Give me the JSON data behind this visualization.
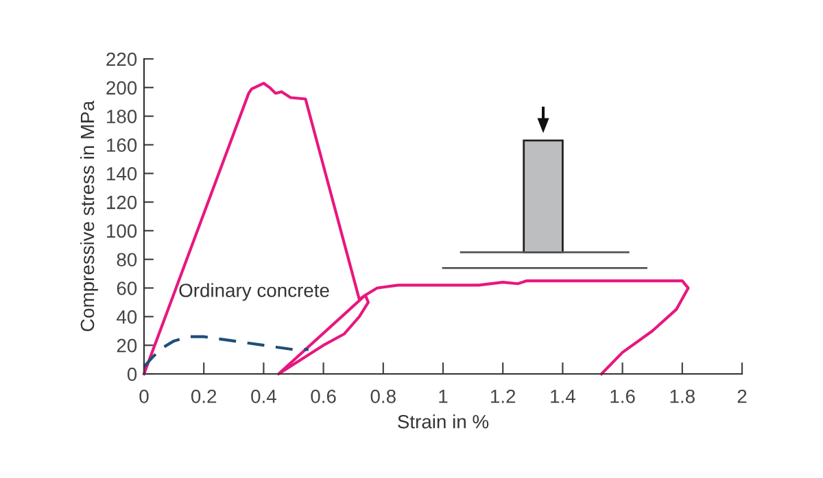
{
  "chart_data": {
    "type": "line",
    "xlabel": "Strain in %",
    "ylabel": "Compressive stress in MPa",
    "xlim": [
      0,
      2
    ],
    "xticks": [
      0,
      0.2,
      0.4,
      0.6,
      0.8,
      1,
      1.2,
      1.4,
      1.6,
      1.8,
      2
    ],
    "ylim": [
      0,
      220
    ],
    "yticks": [
      0,
      20,
      40,
      60,
      80,
      100,
      120,
      140,
      160,
      180,
      200,
      220
    ],
    "grid": false,
    "legend": false,
    "marker": "none",
    "series": [
      {
        "color": "#e8177f",
        "line_style": "solid",
        "x": [
          0,
          0.35,
          0.36,
          0.4,
          0.42,
          0.44,
          0.46,
          0.49,
          0.54,
          0.72,
          0.74,
          0.45,
          0.6,
          0.67,
          0.72,
          0.75,
          0.74,
          0.78,
          0.85,
          1.0,
          1.12,
          1.2,
          1.25,
          1.28,
          1.5,
          1.8,
          1.82,
          1.78,
          1.7,
          1.6,
          1.53
        ],
        "values": [
          0,
          196,
          199,
          203,
          200,
          196,
          197,
          193,
          192,
          52,
          55,
          0,
          20,
          28,
          40,
          50,
          55,
          60,
          62,
          62,
          62,
          64,
          63,
          65,
          65,
          65,
          60,
          45,
          30,
          15,
          0
        ]
      },
      {
        "name": "Ordinary concrete",
        "color": "#1f4e79",
        "line_style": "dashed",
        "x": [
          0.0,
          0.03,
          0.06,
          0.1,
          0.15,
          0.2,
          0.3,
          0.4,
          0.5,
          0.55
        ],
        "values": [
          5,
          12,
          18,
          23,
          26,
          26,
          23,
          20,
          17,
          17
        ]
      }
    ]
  }
}
